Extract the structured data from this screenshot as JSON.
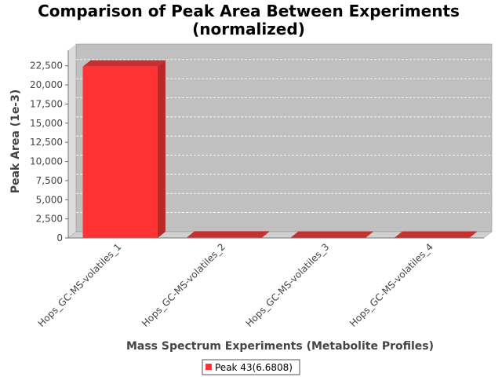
{
  "chart_data": {
    "type": "bar",
    "title_line1": "Comparison of Peak Area Between Experiments",
    "title_line2": "(normalized)",
    "xlabel": "Mass Spectrum Experiments (Metabolite Profiles)",
    "ylabel": "Peak Area (1e-3)",
    "categories": [
      "Hops_GC-MS-volatiles_1",
      "Hops_GC-MS-volatiles_2",
      "Hops_GC-MS-volatiles_3",
      "Hops_GC-MS-volatiles_4"
    ],
    "series": [
      {
        "name": "Peak 43(6.6808)",
        "color": "#ff3333",
        "values": [
          22400,
          60,
          50,
          45
        ]
      }
    ],
    "ylim": [
      0,
      23500
    ],
    "yticks": [
      0,
      2500,
      5000,
      7500,
      10000,
      12500,
      15000,
      17500,
      20000,
      22500
    ],
    "ytick_labels": [
      "0",
      "2,500",
      "5,000",
      "7,500",
      "10,000",
      "12,500",
      "15,000",
      "17,500",
      "20,000",
      "22,500"
    ],
    "grid": true,
    "legend_position": "bottom-center",
    "plot_background": "#c0c0c0",
    "three_d": true
  }
}
